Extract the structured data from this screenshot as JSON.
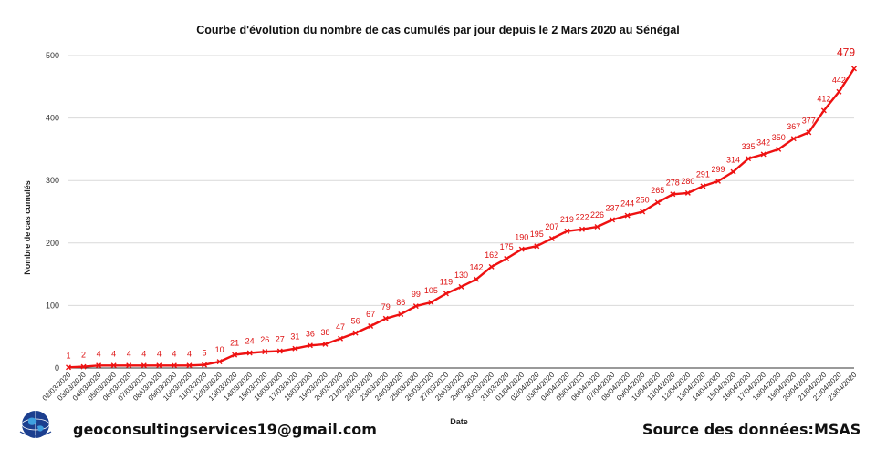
{
  "chart_data": {
    "type": "line",
    "title": "Courbe d'évolution du nombre de cas cumulés par jour depuis le 2 Mars 2020 au Sénégal",
    "xlabel": "Date",
    "ylabel": "Nombre de cas cumulés",
    "ylim": [
      0,
      500
    ],
    "yticks": [
      "0",
      "100",
      "200",
      "300",
      "400",
      "500"
    ],
    "grid": true,
    "line_color": "#ee1111",
    "categories": [
      "02/03/2020",
      "03/03/2020",
      "04/03/2020",
      "05/03/2020",
      "06/03/2020",
      "07/03/2020",
      "08/03/2020",
      "09/03/2020",
      "10/03/2020",
      "11/03/2020",
      "12/03/2020",
      "13/03/2020",
      "14/03/2020",
      "15/03/2020",
      "16/03/2020",
      "17/03/2020",
      "18/03/2020",
      "19/03/2020",
      "20/03/2020",
      "21/03/2020",
      "22/03/2020",
      "23/03/2020",
      "24/03/2020",
      "25/03/2020",
      "26/03/2020",
      "27/03/2020",
      "28/03/2020",
      "29/03/2020",
      "30/03/2020",
      "31/03/2020",
      "01/04/2020",
      "02/04/2020",
      "03/04/2020",
      "04/04/2020",
      "05/04/2020",
      "06/04/2020",
      "07/04/2020",
      "08/04/2020",
      "09/04/2020",
      "10/04/2020",
      "11/04/2020",
      "12/04/2020",
      "13/04/2020",
      "14/04/2020",
      "15/04/2020",
      "16/04/2020",
      "17/04/2020",
      "18/04/2020",
      "19/04/2020",
      "20/04/2020",
      "21/04/2020",
      "22/04/2020",
      "23/04/2020"
    ],
    "values": [
      1,
      2,
      4,
      4,
      4,
      4,
      4,
      4,
      4,
      5,
      10,
      21,
      24,
      26,
      27,
      31,
      36,
      38,
      47,
      56,
      67,
      79,
      86,
      99,
      105,
      119,
      130,
      142,
      162,
      175,
      190,
      195,
      207,
      219,
      222,
      226,
      237,
      244,
      250,
      265,
      278,
      280,
      291,
      299,
      314,
      335,
      342,
      350,
      367,
      377,
      412,
      442,
      479
    ],
    "data_labels": [
      "1",
      "2",
      "4",
      "4",
      "4",
      "4",
      "4",
      "4",
      "4",
      "5",
      "10",
      "21",
      "24",
      "26",
      "27",
      "31",
      "36",
      "38",
      "47",
      "56",
      "67",
      "79",
      "86",
      "99",
      "105",
      "119",
      "130",
      "142",
      "162",
      "175",
      "190",
      "195",
      "207",
      "219",
      "222",
      "226",
      "237",
      "244",
      "250",
      "265",
      "278",
      "280",
      "291",
      "299",
      "314",
      "335",
      "342",
      "350",
      "367",
      "377",
      "412",
      "442",
      "479"
    ],
    "xtick_labels": [
      "02/03/2020",
      "03/03/2020",
      "04/03/2020",
      "05/03/2020",
      "06/03/2020",
      "07/03/2020",
      "08/03/2020",
      "09/03/2020",
      "10/03/2020",
      "11/03/2020",
      "12/03/2020",
      "13/03/2020",
      "14/03/2020",
      "15/03/2020",
      "16/03/2020",
      "17/03/2020",
      "18/03/2020",
      "19/03/2020",
      "20/03/2020",
      "21/03/2020",
      "22/03/2020",
      "23/03/2020",
      "24/03/2020",
      "25/03/2020",
      "26/03/2020",
      "27/03/2020",
      "28/03/2020",
      "29/03/2020",
      "30/03/2020",
      "31/03/2020",
      "01/04/2020",
      "02/04/2020",
      "03/04/2020",
      "04/04/2020",
      "05/04/2020",
      "06/04/2020",
      "07/04/2020",
      "08/04/2020",
      "09/04/2020",
      "10/04/2020",
      "11/04/2020",
      "12/04/2020",
      "13/04/2020",
      "14/04/2020",
      "15/04/2020",
      "16/04/2020",
      "17/04/2020",
      "18/04/2020",
      "19/04/2020",
      "20/04/2020",
      "21/04/2020",
      "22/04/2020",
      "23/04/2020"
    ]
  },
  "footer": {
    "email": "geoconsultingservices19@gmail.com",
    "source": "Source des données:MSAS"
  }
}
